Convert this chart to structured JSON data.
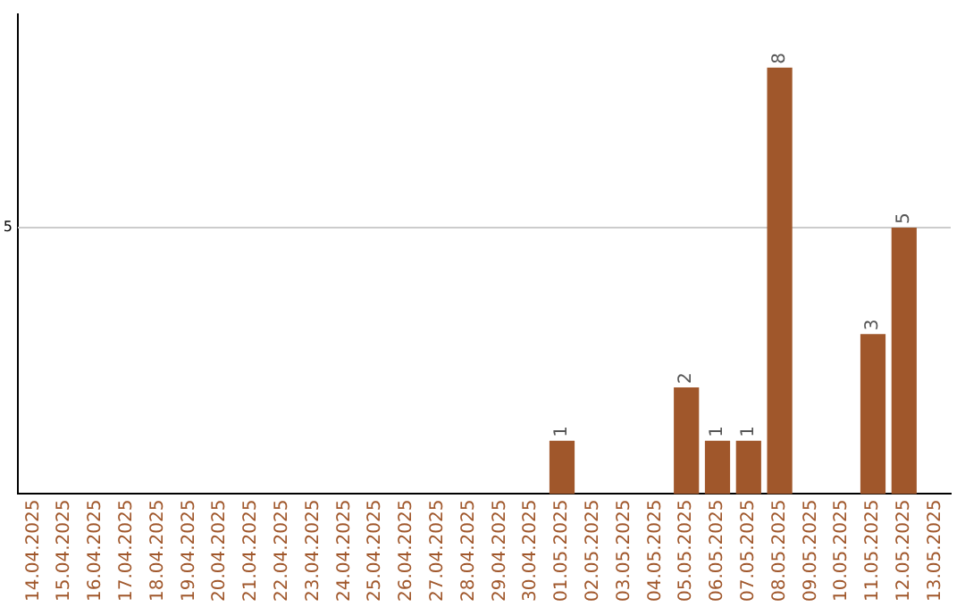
{
  "chart_data": {
    "type": "bar",
    "categories": [
      "14.04.2025",
      "15.04.2025",
      "16.04.2025",
      "17.04.2025",
      "18.04.2025",
      "19.04.2025",
      "20.04.2025",
      "21.04.2025",
      "22.04.2025",
      "23.04.2025",
      "24.04.2025",
      "25.04.2025",
      "26.04.2025",
      "27.04.2025",
      "28.04.2025",
      "29.04.2025",
      "30.04.2025",
      "01.05.2025",
      "02.05.2025",
      "03.05.2025",
      "04.05.2025",
      "05.05.2025",
      "06.05.2025",
      "07.05.2025",
      "08.05.2025",
      "09.05.2025",
      "10.05.2025",
      "11.05.2025",
      "12.05.2025",
      "13.05.2025"
    ],
    "values": [
      null,
      null,
      null,
      null,
      null,
      null,
      null,
      null,
      null,
      null,
      null,
      null,
      null,
      null,
      null,
      null,
      null,
      1,
      null,
      null,
      null,
      2,
      1,
      1,
      8,
      null,
      null,
      3,
      5,
      null
    ],
    "data_labels": true,
    "color": "#a0572b",
    "ref_lines": [
      {
        "axis": "y",
        "value": 5,
        "label": "5",
        "color": "#cccccc"
      }
    ],
    "legend": false
  }
}
